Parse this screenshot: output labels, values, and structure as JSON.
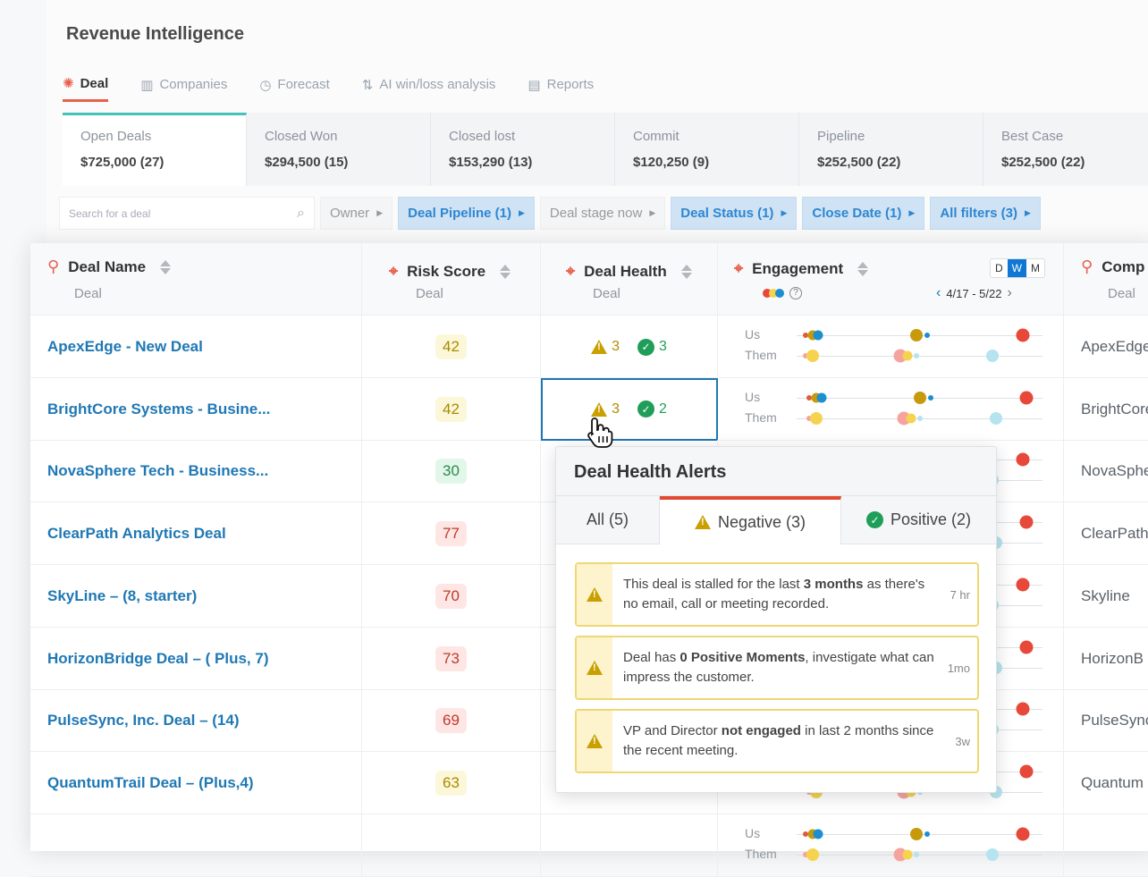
{
  "app": {
    "title": "Revenue Intelligence"
  },
  "tabs": [
    {
      "label": "Deal",
      "icon": "deal-icon",
      "active": true
    },
    {
      "label": "Companies",
      "icon": "building-icon"
    },
    {
      "label": "Forecast",
      "icon": "clock-icon"
    },
    {
      "label": "AI win/loss analysis",
      "icon": "sort-icon"
    },
    {
      "label": "Reports",
      "icon": "chart-icon"
    }
  ],
  "stats": [
    {
      "label": "Open Deals",
      "value": "$725,000 (27)"
    },
    {
      "label": "Closed Won",
      "value": "$294,500 (15)"
    },
    {
      "label": "Closed lost",
      "value": "$153,290 (13)"
    },
    {
      "label": "Commit",
      "value": "$120,250 (9)"
    },
    {
      "label": "Pipeline",
      "value": "$252,500 (22)"
    },
    {
      "label": "Best Case",
      "value": "$252,500 (22)"
    }
  ],
  "filters": {
    "search_placeholder": "Search for a deal",
    "chips": [
      {
        "label": "Owner",
        "active": false
      },
      {
        "label": "Deal Pipeline (1)",
        "active": true
      },
      {
        "label": "Deal stage now",
        "active": false
      },
      {
        "label": "Deal Status (1)",
        "active": true
      },
      {
        "label": "Close Date (1)",
        "active": true
      },
      {
        "label": "All filters (3)",
        "active": true
      }
    ]
  },
  "columns": {
    "deal_name": {
      "label": "Deal Name",
      "sub": "Deal"
    },
    "risk": {
      "label": "Risk Score",
      "sub": "Deal"
    },
    "health": {
      "label": "Deal Health",
      "sub": "Deal"
    },
    "engagement": {
      "label": "Engagement",
      "range": "4/17 - 5/22",
      "periods": [
        "D",
        "W",
        "M"
      ],
      "selected_period": "W"
    },
    "company": {
      "label": "Comp",
      "sub": "Deal"
    }
  },
  "engagement_labels": {
    "us": "Us",
    "them": "Them"
  },
  "colors": {
    "accent": "#1f78b4",
    "negative": "#c9a000",
    "positive": "#1e9e58",
    "alert_tab": "#e04a32"
  },
  "rows": [
    {
      "name": "ApexEdge - New Deal",
      "risk": "42",
      "risk_level": "medium",
      "neg": "3",
      "pos": "3",
      "company": "ApexEdge"
    },
    {
      "name": "BrightCore Systems - Busine...",
      "risk": "42",
      "risk_level": "medium",
      "neg": "3",
      "pos": "2",
      "company": "BrightCore",
      "selected": true
    },
    {
      "name": "NovaSphere Tech - Business...",
      "risk": "30",
      "risk_level": "low",
      "company": "NovaSphere"
    },
    {
      "name": "ClearPath Analytics Deal",
      "risk": "77",
      "risk_level": "high",
      "company": "ClearPath"
    },
    {
      "name": "SkyLine – (8, starter)",
      "risk": "70",
      "risk_level": "high",
      "company": "Skyline"
    },
    {
      "name": "HorizonBridge Deal – ( Plus, 7)",
      "risk": "73",
      "risk_level": "high",
      "company": "HorizonB"
    },
    {
      "name": "PulseSync, Inc. Deal – (14)",
      "risk": "69",
      "risk_level": "high",
      "company": "PulseSync"
    },
    {
      "name": "QuantumTrail Deal – (Plus,4)",
      "risk": "63",
      "risk_level": "medium",
      "company": "Quantum"
    }
  ],
  "popup": {
    "title": "Deal Health Alerts",
    "tabs": [
      {
        "label": "All (5)"
      },
      {
        "label": "Negative (3)",
        "active": true
      },
      {
        "label": "Positive (2)"
      }
    ],
    "alerts": [
      {
        "pre": "This deal is stalled for the last ",
        "bold": "3 months",
        "post": " as there's no email, call or meeting recorded.",
        "time": "7 hr"
      },
      {
        "pre": "Deal has ",
        "bold": "0 Positive Moments",
        "post": ", investigate what can impress the customer.",
        "time": "1mo"
      },
      {
        "pre": "VP and Director ",
        "bold": "not engaged",
        "post": " in last 2 months since the recent meeting.",
        "time": "3w"
      }
    ]
  }
}
